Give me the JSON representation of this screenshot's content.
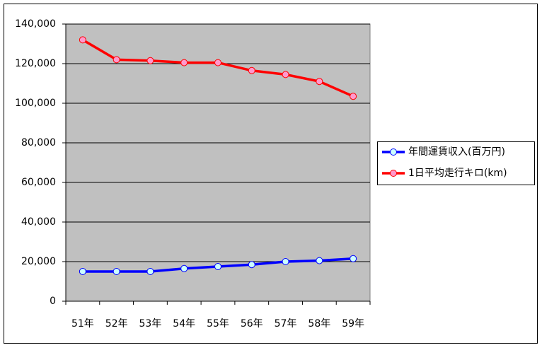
{
  "chart_data": {
    "type": "line",
    "categories": [
      "51年",
      "52年",
      "53年",
      "54年",
      "55年",
      "56年",
      "57年",
      "58年",
      "59年"
    ],
    "series": [
      {
        "name": "年間運賃収入(百万円)",
        "color": "#0000ff",
        "marker_fill": "#ccffff",
        "values": [
          15000,
          15000,
          15000,
          16500,
          17500,
          18500,
          20000,
          20500,
          21500
        ]
      },
      {
        "name": "1日平均走行キロ(km)",
        "color": "#ff0000",
        "marker_fill": "#ff99cc",
        "values": [
          132000,
          122000,
          121500,
          120500,
          120500,
          116500,
          114500,
          111000,
          103500
        ]
      }
    ],
    "ylim": [
      0,
      140000
    ],
    "yticks": [
      0,
      {
        "value": 20000,
        "label": "20,000"
      },
      {
        "value": 40000,
        "label": "40,000"
      },
      {
        "value": 60000,
        "label": "60,000"
      },
      {
        "value": 80000,
        "label": "80,000"
      },
      {
        "value": 100000,
        "label": "100,000"
      },
      {
        "value": 120000,
        "label": "120,000"
      },
      {
        "value": 140000,
        "label": "140,000"
      }
    ],
    "grid": true,
    "legend": "right"
  }
}
